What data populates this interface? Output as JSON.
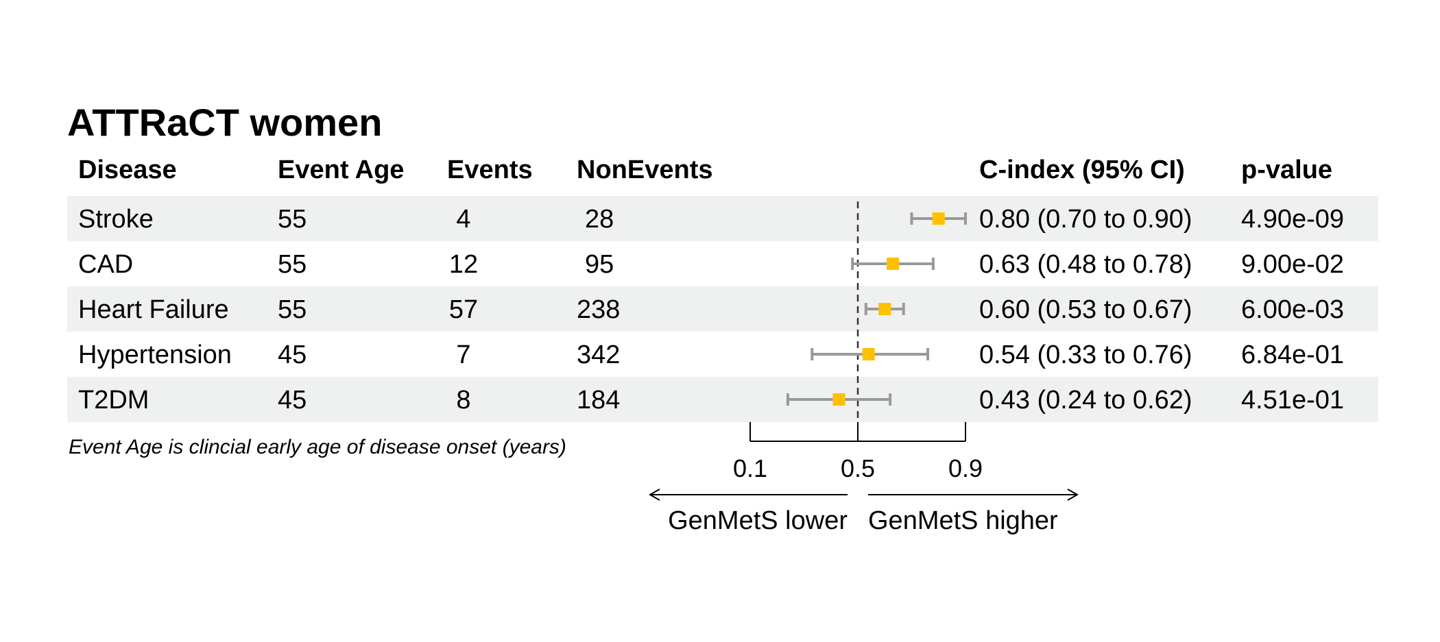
{
  "chart_data": {
    "type": "forest",
    "title": "ATTRaCT women",
    "columns": [
      "Disease",
      "Event Age",
      "Events",
      "NonEvents",
      "C-index (95% CI)",
      "p-value"
    ],
    "rows": [
      {
        "disease": "Stroke",
        "event_age": "55",
        "events": "4",
        "nonevents": "28",
        "estimate": 0.8,
        "lower": 0.7,
        "upper": 0.9,
        "ci_text": "0.80 (0.70 to 0.90)",
        "p_value": "4.90e-09"
      },
      {
        "disease": "CAD",
        "event_age": "55",
        "events": "12",
        "nonevents": "95",
        "estimate": 0.63,
        "lower": 0.48,
        "upper": 0.78,
        "ci_text": "0.63 (0.48 to 0.78)",
        "p_value": "9.00e-02"
      },
      {
        "disease": "Heart Failure",
        "event_age": "55",
        "events": "57",
        "nonevents": "238",
        "estimate": 0.6,
        "lower": 0.53,
        "upper": 0.67,
        "ci_text": "0.60 (0.53 to 0.67)",
        "p_value": "6.00e-03"
      },
      {
        "disease": "Hypertension",
        "event_age": "45",
        "events": "7",
        "nonevents": "342",
        "estimate": 0.54,
        "lower": 0.33,
        "upper": 0.76,
        "ci_text": "0.54 (0.33 to 0.76)",
        "p_value": "6.84e-01"
      },
      {
        "disease": "T2DM",
        "event_age": "45",
        "events": "8",
        "nonevents": "184",
        "estimate": 0.43,
        "lower": 0.24,
        "upper": 0.62,
        "ci_text": "0.43 (0.24 to 0.62)",
        "p_value": "4.51e-01"
      }
    ],
    "x_ticks": [
      0.1,
      0.5,
      0.9
    ],
    "xlim": [
      0.1,
      0.9
    ],
    "reference_line": 0.5,
    "footnote": "Event Age is clincial early age of disease onset (years)",
    "direction_labels": {
      "left": "GenMetS lower",
      "right": "GenMetS higher"
    },
    "colors": {
      "point": "#FFC000",
      "ci": "#999999",
      "row_shade": "#EFF1F0",
      "reference": "#333333"
    }
  }
}
